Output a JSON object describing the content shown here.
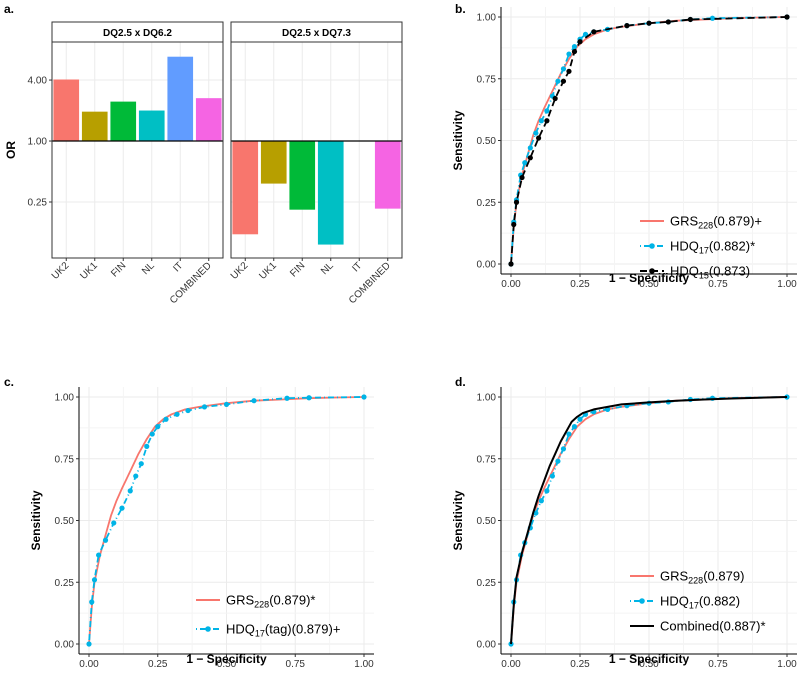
{
  "chart_data": [
    {
      "panel": "a.",
      "type": "bar",
      "ylabel": "OR",
      "y_scale": "log",
      "yticks": [
        {
          "value": 0.25,
          "label": "0.25"
        },
        {
          "value": 1.0,
          "label": "1.00"
        },
        {
          "value": 4.0,
          "label": "4.00"
        }
      ],
      "ylim": [
        0.07,
        9.5
      ],
      "baseline": 1.0,
      "categories": [
        "UK2",
        "UK1",
        "FIN",
        "NL",
        "IT",
        "COMBINED"
      ],
      "colors": [
        "#F8766D",
        "#B79F00",
        "#00BA38",
        "#00BFC4",
        "#619CFF",
        "#F564E3"
      ],
      "facets": [
        {
          "title": "DQ2.5 x DQ6.2",
          "values": [
            4.05,
            1.95,
            2.45,
            2.0,
            6.8,
            2.65
          ]
        },
        {
          "title": "DQ2.5 x DQ7.3",
          "values": [
            0.12,
            0.38,
            0.21,
            0.095,
            null,
            0.215
          ]
        }
      ]
    },
    {
      "panel": "b.",
      "type": "line",
      "xlabel": "1 − Specificity",
      "ylabel": "Sensitivity",
      "xlim": [
        0,
        1
      ],
      "ylim": [
        0,
        1
      ],
      "ticks": [
        "0.00",
        "0.25",
        "0.50",
        "0.75",
        "1.00"
      ],
      "series": [
        {
          "name": "GRS",
          "sub": "228",
          "suffix": "(0.879)+",
          "color": "#F8766D",
          "style": "solid",
          "markers": false,
          "x": [
            0,
            0.01,
            0.02,
            0.04,
            0.06,
            0.08,
            0.1,
            0.12,
            0.15,
            0.18,
            0.21,
            0.24,
            0.27,
            0.3,
            0.35,
            0.4,
            0.5,
            0.6,
            0.7,
            0.8,
            0.9,
            1.0
          ],
          "y": [
            0,
            0.15,
            0.25,
            0.36,
            0.44,
            0.52,
            0.58,
            0.63,
            0.7,
            0.77,
            0.83,
            0.88,
            0.91,
            0.93,
            0.95,
            0.96,
            0.975,
            0.985,
            0.99,
            0.995,
            0.998,
            1.0
          ]
        },
        {
          "name": "HDQ",
          "sub": "17",
          "suffix": "(0.882)*",
          "color": "#00B4E6",
          "style": "dotdash",
          "markers": true,
          "x": [
            0,
            0.01,
            0.02,
            0.035,
            0.05,
            0.07,
            0.09,
            0.11,
            0.13,
            0.15,
            0.17,
            0.19,
            0.21,
            0.23,
            0.25,
            0.27,
            0.3,
            0.35,
            0.42,
            0.5,
            0.57,
            0.65,
            0.73,
            1.0
          ],
          "y": [
            0,
            0.17,
            0.26,
            0.36,
            0.41,
            0.47,
            0.53,
            0.58,
            0.62,
            0.68,
            0.74,
            0.79,
            0.85,
            0.88,
            0.91,
            0.93,
            0.94,
            0.95,
            0.965,
            0.975,
            0.98,
            0.99,
            0.995,
            1.0
          ]
        },
        {
          "name": "HDQ",
          "sub": "15",
          "suffix": "(0.873)",
          "color": "#000000",
          "style": "dashed",
          "markers": true,
          "x": [
            0,
            0.01,
            0.02,
            0.04,
            0.07,
            0.1,
            0.13,
            0.16,
            0.19,
            0.21,
            0.23,
            0.25,
            0.3,
            0.42,
            0.5,
            0.57,
            0.65,
            1.0
          ],
          "y": [
            0,
            0.16,
            0.25,
            0.35,
            0.43,
            0.51,
            0.58,
            0.67,
            0.74,
            0.78,
            0.86,
            0.9,
            0.94,
            0.965,
            0.975,
            0.98,
            0.99,
            1.0
          ]
        }
      ]
    },
    {
      "panel": "c.",
      "type": "line",
      "xlabel": "1 − Specificity",
      "ylabel": "Sensitivity",
      "xlim": [
        0,
        1
      ],
      "ylim": [
        0,
        1
      ],
      "ticks": [
        "0.00",
        "0.25",
        "0.50",
        "0.75",
        "1.00"
      ],
      "series": [
        {
          "name": "GRS",
          "sub": "228",
          "suffix": "(0.879)*",
          "color": "#F8766D",
          "style": "solid",
          "markers": false,
          "x": [
            0,
            0.01,
            0.02,
            0.04,
            0.06,
            0.08,
            0.1,
            0.12,
            0.15,
            0.18,
            0.21,
            0.24,
            0.27,
            0.3,
            0.35,
            0.4,
            0.5,
            0.6,
            0.7,
            0.8,
            0.9,
            1.0
          ],
          "y": [
            0,
            0.15,
            0.25,
            0.36,
            0.44,
            0.52,
            0.58,
            0.63,
            0.7,
            0.77,
            0.83,
            0.88,
            0.91,
            0.93,
            0.95,
            0.96,
            0.975,
            0.985,
            0.99,
            0.995,
            0.998,
            1.0
          ]
        },
        {
          "name": "HDQ",
          "sub": "17",
          "suffix": "(tag)(0.879)+",
          "color": "#00B4E6",
          "style": "dotdash",
          "markers": true,
          "x": [
            0,
            0.01,
            0.02,
            0.035,
            0.06,
            0.09,
            0.12,
            0.15,
            0.17,
            0.19,
            0.21,
            0.23,
            0.25,
            0.28,
            0.32,
            0.36,
            0.42,
            0.5,
            0.6,
            0.72,
            0.8,
            1.0
          ],
          "y": [
            0,
            0.17,
            0.26,
            0.36,
            0.42,
            0.49,
            0.55,
            0.62,
            0.68,
            0.73,
            0.8,
            0.85,
            0.88,
            0.91,
            0.93,
            0.945,
            0.96,
            0.97,
            0.985,
            0.995,
            0.997,
            1.0
          ]
        }
      ]
    },
    {
      "panel": "d.",
      "type": "line",
      "xlabel": "1 − Specificity",
      "ylabel": "Sensitivity",
      "xlim": [
        0,
        1
      ],
      "ylim": [
        0,
        1
      ],
      "ticks": [
        "0.00",
        "0.25",
        "0.50",
        "0.75",
        "1.00"
      ],
      "series": [
        {
          "name": "GRS",
          "sub": "228",
          "suffix": "(0.879)",
          "color": "#F8766D",
          "style": "solid",
          "markers": false,
          "x": [
            0,
            0.01,
            0.02,
            0.04,
            0.06,
            0.08,
            0.1,
            0.12,
            0.15,
            0.18,
            0.21,
            0.24,
            0.27,
            0.3,
            0.35,
            0.4,
            0.5,
            0.6,
            0.7,
            0.8,
            0.9,
            1.0
          ],
          "y": [
            0,
            0.15,
            0.25,
            0.36,
            0.44,
            0.52,
            0.58,
            0.63,
            0.7,
            0.77,
            0.83,
            0.88,
            0.91,
            0.93,
            0.95,
            0.96,
            0.975,
            0.985,
            0.99,
            0.995,
            0.998,
            1.0
          ]
        },
        {
          "name": "HDQ",
          "sub": "17",
          "suffix": "(0.882)",
          "color": "#00B4E6",
          "style": "dotdash",
          "markers": true,
          "x": [
            0,
            0.01,
            0.02,
            0.035,
            0.05,
            0.07,
            0.09,
            0.11,
            0.13,
            0.15,
            0.17,
            0.19,
            0.21,
            0.23,
            0.25,
            0.27,
            0.3,
            0.35,
            0.42,
            0.5,
            0.57,
            0.65,
            0.73,
            1.0
          ],
          "y": [
            0,
            0.17,
            0.26,
            0.36,
            0.41,
            0.47,
            0.53,
            0.58,
            0.62,
            0.68,
            0.74,
            0.79,
            0.85,
            0.88,
            0.91,
            0.93,
            0.94,
            0.95,
            0.965,
            0.975,
            0.98,
            0.99,
            0.995,
            1.0
          ]
        },
        {
          "name": "Combined",
          "sub": "",
          "suffix": "(0.887)*",
          "color": "#000000",
          "style": "solid",
          "markers": false,
          "x": [
            0,
            0.01,
            0.02,
            0.04,
            0.06,
            0.08,
            0.1,
            0.12,
            0.14,
            0.16,
            0.18,
            0.2,
            0.22,
            0.24,
            0.26,
            0.3,
            0.35,
            0.4,
            0.5,
            0.6,
            0.7,
            0.8,
            0.9,
            1.0
          ],
          "y": [
            0,
            0.16,
            0.27,
            0.37,
            0.45,
            0.53,
            0.6,
            0.66,
            0.72,
            0.77,
            0.82,
            0.86,
            0.9,
            0.92,
            0.935,
            0.95,
            0.96,
            0.97,
            0.978,
            0.985,
            0.99,
            0.994,
            0.997,
            1.0
          ]
        }
      ]
    }
  ]
}
